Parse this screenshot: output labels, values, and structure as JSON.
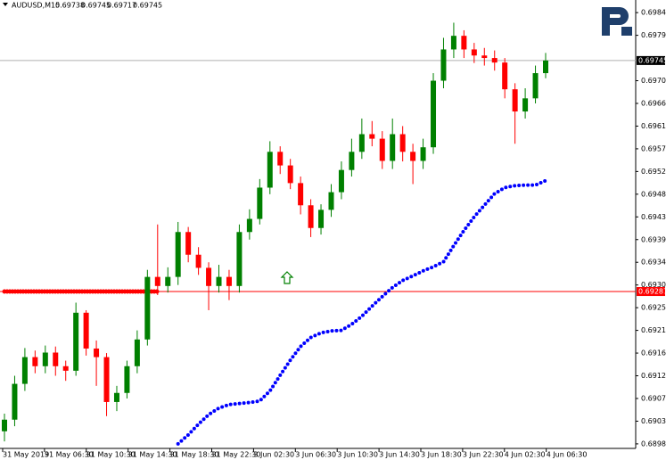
{
  "chart_data": {
    "type": "candlestick",
    "title": "AUDUSD,M15",
    "header_values": [
      0.69738,
      0.69745,
      0.69717,
      0.69745
    ],
    "up_color": "#008000",
    "down_color": "#ff0000",
    "open": [
      0.6901,
      0.69033,
      0.69104,
      0.69157,
      0.69139,
      0.69166,
      0.69139,
      0.6913,
      0.69245,
      0.69174,
      0.69157,
      0.69068,
      0.69086,
      0.69139,
      0.69192,
      0.69316,
      0.69298,
      0.69316,
      0.69405,
      0.6936,
      0.69334,
      0.69298,
      0.69316,
      0.69298,
      0.69405,
      0.69431,
      0.69493,
      0.69564,
      0.69537,
      0.69502,
      0.69458,
      0.69413,
      0.69449,
      0.69484,
      0.69528,
      0.69564,
      0.69599,
      0.6959,
      0.69546,
      0.69599,
      0.69564,
      0.69546,
      0.69573,
      0.69705,
      0.69767,
      0.69794,
      0.69767,
      0.69755,
      0.6975,
      0.69741,
      0.69688,
      0.69644,
      0.6967,
      0.6972
    ],
    "high": [
      0.69045,
      0.6912,
      0.69175,
      0.6917,
      0.6918,
      0.69178,
      0.6915,
      0.69265,
      0.6925,
      0.6919,
      0.69165,
      0.691,
      0.6915,
      0.6921,
      0.6933,
      0.6942,
      0.69335,
      0.69425,
      0.69415,
      0.69375,
      0.69345,
      0.6934,
      0.6933,
      0.6942,
      0.6945,
      0.6951,
      0.69585,
      0.69575,
      0.6955,
      0.69515,
      0.6947,
      0.6946,
      0.695,
      0.69545,
      0.6959,
      0.6963,
      0.69625,
      0.69605,
      0.6963,
      0.69615,
      0.6958,
      0.6959,
      0.6972,
      0.6979,
      0.6982,
      0.69805,
      0.6978,
      0.6977,
      0.69765,
      0.6975,
      0.697,
      0.6969,
      0.69735,
      0.6976
    ],
    "low": [
      0.6899,
      0.6902,
      0.6909,
      0.69125,
      0.69125,
      0.6912,
      0.6911,
      0.6912,
      0.6916,
      0.691,
      0.6904,
      0.6905,
      0.69075,
      0.69125,
      0.6918,
      0.6928,
      0.69285,
      0.693,
      0.69345,
      0.6932,
      0.6925,
      0.69285,
      0.6927,
      0.69285,
      0.6939,
      0.6942,
      0.6948,
      0.6952,
      0.6949,
      0.6944,
      0.69395,
      0.694,
      0.69435,
      0.6947,
      0.69515,
      0.6955,
      0.69575,
      0.6953,
      0.6953,
      0.69545,
      0.695,
      0.6953,
      0.6956,
      0.6969,
      0.6975,
      0.6975,
      0.6974,
      0.69735,
      0.69725,
      0.6967,
      0.6958,
      0.6963,
      0.6966,
      0.6971
    ],
    "close": [
      0.69033,
      0.69104,
      0.69157,
      0.69139,
      0.69166,
      0.69139,
      0.6913,
      0.69245,
      0.69174,
      0.69157,
      0.69068,
      0.69086,
      0.69139,
      0.69192,
      0.69316,
      0.69298,
      0.69316,
      0.69405,
      0.6936,
      0.69334,
      0.69298,
      0.69316,
      0.69298,
      0.69405,
      0.69431,
      0.69493,
      0.69564,
      0.69537,
      0.69502,
      0.69458,
      0.69413,
      0.69449,
      0.69484,
      0.69528,
      0.69564,
      0.69599,
      0.6959,
      0.69546,
      0.69599,
      0.69564,
      0.69546,
      0.69573,
      0.69705,
      0.69767,
      0.69794,
      0.69767,
      0.69755,
      0.6975,
      0.69741,
      0.69688,
      0.69644,
      0.6967,
      0.6972,
      0.69745
    ],
    "indicators": [
      {
        "color": "#0000ff",
        "values": [
          null,
          null,
          null,
          null,
          null,
          null,
          null,
          null,
          null,
          null,
          null,
          null,
          null,
          null,
          null,
          null,
          null,
          0.68985,
          0.69003,
          0.69024,
          0.69043,
          0.69056,
          0.69063,
          0.69065,
          0.69067,
          0.6907,
          0.6909,
          0.69121,
          0.69151,
          0.69178,
          0.69196,
          0.69205,
          0.69209,
          0.6921,
          0.69222,
          0.69238,
          0.69258,
          0.69277,
          0.69295,
          0.69309,
          0.69318,
          0.69328,
          0.69336,
          0.69346,
          0.69378,
          0.69408,
          0.69435,
          0.69458,
          0.69481,
          0.69493,
          0.69497,
          0.69498,
          0.69498,
          0.69507
        ]
      },
      {
        "color": "#ff0000",
        "values": [
          0.69287,
          0.69287,
          0.69287,
          0.69287,
          0.69287,
          0.69287,
          0.69287,
          0.69287,
          0.69287,
          0.69287,
          0.69287,
          0.69287,
          0.69287,
          0.69287,
          0.69287,
          0.69287,
          null,
          null,
          null,
          null,
          null,
          null,
          null,
          null,
          null,
          null,
          null,
          null,
          null,
          null,
          null,
          null,
          null,
          null,
          null,
          null,
          null,
          null,
          null,
          null,
          null,
          null,
          null,
          null,
          null,
          null,
          null,
          null,
          null,
          null,
          null,
          null,
          null,
          null
        ]
      }
    ],
    "levels": [
      {
        "value": 0.69745,
        "color": "#b0b0b0",
        "label_color": "#000000"
      },
      {
        "value": 0.69287,
        "color": "#ff0000",
        "label_color": "#ff0000"
      }
    ],
    "ylim": [
      0.68976,
      0.69865
    ],
    "yticks": [
      {
        "value": 0.6984,
        "label": "0.69840"
      },
      0.69795,
      0.69705,
      {
        "value": 0.6966,
        "label": "0.69660"
      },
      0.69615,
      {
        "value": 0.6957,
        "label": "0.69570"
      },
      0.69525,
      {
        "value": 0.6948,
        "label": "0.69480"
      },
      0.69435,
      {
        "value": 0.6939,
        "label": "0.69390"
      },
      0.69345,
      {
        "value": 0.693,
        "label": "0.69300"
      },
      0.69255,
      {
        "value": 0.6921,
        "label": "0.69210"
      },
      0.69165,
      {
        "value": 0.6912,
        "label": "0.69120"
      },
      0.69075,
      {
        "value": 0.6903,
        "label": "0.69030"
      },
      0.68985
    ],
    "x_labels": [
      "31 May 2019",
      "31 May 06:30",
      "31 May 10:30",
      "31 May 14:30",
      "31 May 18:30",
      "31 May 22:30",
      "3 Jun 02:30",
      "3 Jun 06:30",
      "3 Jun 10:30",
      "3 Jun 14:30",
      "3 Jun 18:30",
      "3 Jun 22:30",
      "4 Jun 02:30",
      "4 Jun 06:30"
    ]
  }
}
